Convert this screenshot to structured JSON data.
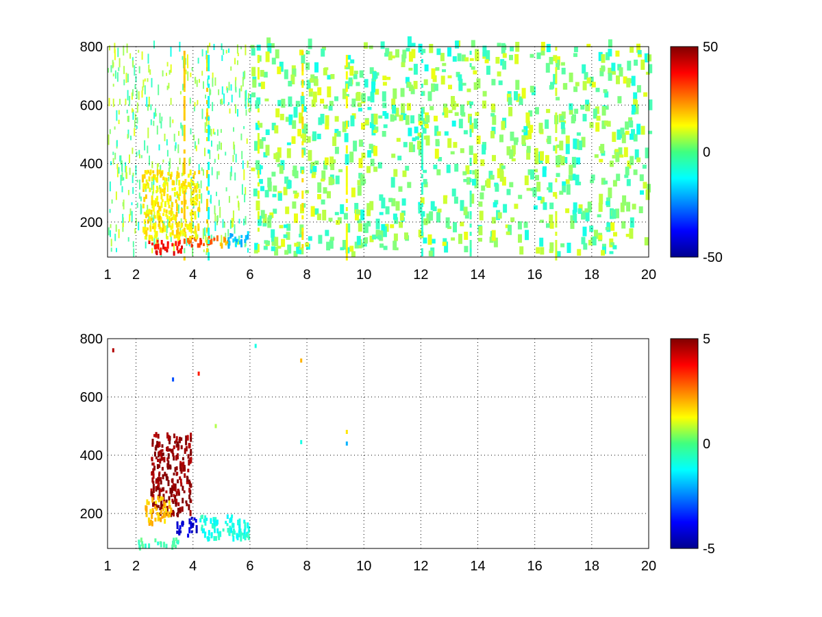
{
  "figure": {
    "background": "#ffffff"
  },
  "colors": {
    "axis": "#000000",
    "grid": "#000000",
    "colormap": "jet"
  },
  "chart_data": [
    {
      "type": "heatmap",
      "title": "",
      "xlabel": "",
      "ylabel": "",
      "xlim": [
        1,
        20
      ],
      "ylim": [
        80,
        800
      ],
      "xticks": [
        1,
        2,
        4,
        6,
        8,
        10,
        12,
        14,
        16,
        18,
        20
      ],
      "xtick_labels": [
        "1",
        "2",
        "4",
        "6",
        "8",
        "10",
        "12",
        "14",
        "16",
        "18",
        "20"
      ],
      "yticks": [
        200,
        400,
        600,
        800
      ],
      "ytick_labels": [
        "200",
        "400",
        "600",
        "800"
      ],
      "grid": true,
      "colorbar": {
        "limits": [
          -50,
          50
        ],
        "ticks": [
          50,
          0,
          -50
        ],
        "tick_labels": [
          "50",
          "0",
          "-50"
        ],
        "colormap": "jet"
      },
      "regions": [
        {
          "x": [
            2.3,
            3.6
          ],
          "y": [
            100,
            140
          ],
          "value": 38
        },
        {
          "x": [
            3.6,
            4.9
          ],
          "y": [
            125,
            155
          ],
          "value": 30
        },
        {
          "x": [
            4.9,
            5.2
          ],
          "y": [
            125,
            160
          ],
          "value": 20
        },
        {
          "x": [
            5.2,
            6.0
          ],
          "y": [
            125,
            170
          ],
          "value": -18
        },
        {
          "x": [
            2.2,
            4.2
          ],
          "y": [
            150,
            380
          ],
          "value": 14
        }
      ],
      "vertical_stripes": [
        {
          "x": 3.7,
          "value": 18
        },
        {
          "x": 4.5,
          "value": 16
        },
        {
          "x": 4.55,
          "value": -12
        },
        {
          "x": 6.3,
          "value": 10
        },
        {
          "x": 7.85,
          "value": 15
        },
        {
          "x": 9.4,
          "value": 12
        },
        {
          "x": 12.05,
          "value": -8
        },
        {
          "x": 13.75,
          "value": -6
        },
        {
          "x": 16.75,
          "value": 8
        }
      ]
    },
    {
      "type": "heatmap",
      "title": "",
      "xlabel": "",
      "ylabel": "",
      "xlim": [
        1,
        20
      ],
      "ylim": [
        80,
        800
      ],
      "xticks": [
        1,
        2,
        4,
        6,
        8,
        10,
        12,
        14,
        16,
        18,
        20
      ],
      "xtick_labels": [
        "1",
        "2",
        "4",
        "6",
        "8",
        "10",
        "12",
        "14",
        "16",
        "18",
        "20"
      ],
      "yticks": [
        200,
        400,
        600,
        800
      ],
      "ytick_labels": [
        "200",
        "400",
        "600",
        "800"
      ],
      "grid": true,
      "colorbar": {
        "limits": [
          -5,
          5
        ],
        "ticks": [
          5,
          0,
          -5
        ],
        "tick_labels": [
          "5",
          "0",
          "-5"
        ],
        "colormap": "jet"
      },
      "regions": [
        {
          "x": [
            2.5,
            3.9
          ],
          "y": [
            200,
            480
          ],
          "value": 4.8
        },
        {
          "x": [
            2.3,
            3.2
          ],
          "y": [
            170,
            260
          ],
          "value": 1.8
        },
        {
          "x": [
            3.4,
            4.1
          ],
          "y": [
            130,
            190
          ],
          "value": -4.2
        },
        {
          "x": [
            2.0,
            3.5
          ],
          "y": [
            90,
            120
          ],
          "value": -0.5
        },
        {
          "x": [
            4.2,
            6.0
          ],
          "y": [
            120,
            200
          ],
          "value": -1.0
        }
      ],
      "points": [
        {
          "x": 1.2,
          "y": 760,
          "value": 4.5
        },
        {
          "x": 7.8,
          "y": 725,
          "value": 2.0
        },
        {
          "x": 7.8,
          "y": 445,
          "value": -1.0
        },
        {
          "x": 9.4,
          "y": 480,
          "value": 1.5
        },
        {
          "x": 9.4,
          "y": 440,
          "value": -2.0
        },
        {
          "x": 6.2,
          "y": 775,
          "value": -1.0
        },
        {
          "x": 3.3,
          "y": 660,
          "value": -3.0
        },
        {
          "x": 4.2,
          "y": 680,
          "value": 3.5
        },
        {
          "x": 4.8,
          "y": 500,
          "value": 0.5
        }
      ]
    }
  ]
}
